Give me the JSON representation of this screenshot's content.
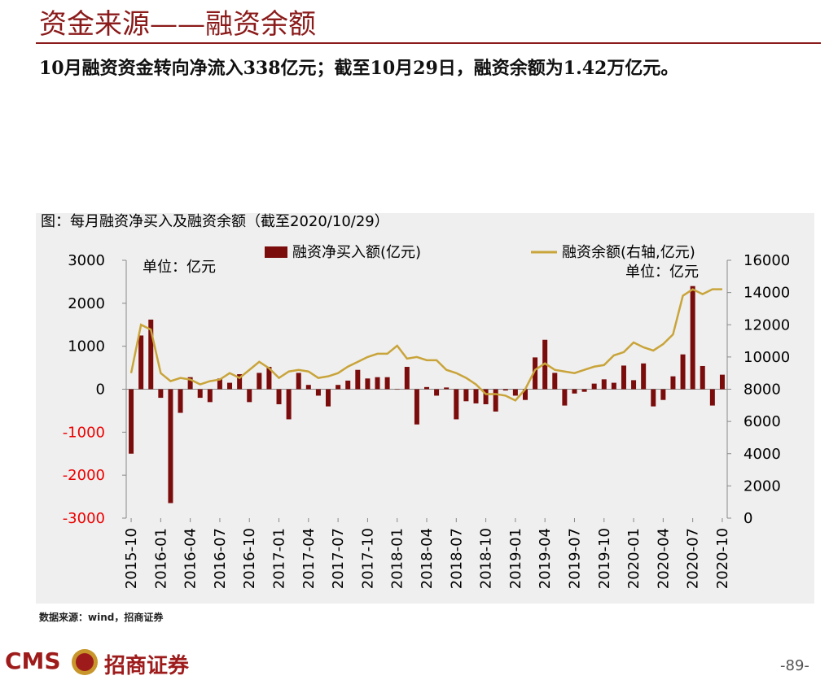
{
  "header": {
    "title": "资金来源——融资余额",
    "subtitle": "10月融资资金转向净流入338亿元；截至10月29日，融资余额为1.42万亿元。"
  },
  "chart_data": {
    "type": "bar_line",
    "title": "图：每月融资净买入及融资余额（截至2020/10/29）",
    "unit_left": "单位：亿元",
    "unit_right": "单位：亿元",
    "categories": [
      "2015-10",
      null,
      null,
      "2016-01",
      null,
      null,
      "2016-04",
      null,
      null,
      "2016-07",
      null,
      null,
      "2016-10",
      null,
      null,
      "2017-01",
      null,
      null,
      "2017-04",
      null,
      null,
      "2017-07",
      null,
      null,
      "2017-10",
      null,
      null,
      "2018-01",
      null,
      null,
      "2018-04",
      null,
      null,
      "2018-07",
      null,
      null,
      "2018-10",
      null,
      null,
      "2019-01",
      null,
      null,
      "2019-04",
      null,
      null,
      "2019-07",
      null,
      null,
      "2019-10",
      null,
      null,
      "2020-01",
      null,
      null,
      "2020-04",
      null,
      null,
      "2020-07",
      null,
      null,
      "2020-10"
    ],
    "series": [
      {
        "name": "融资净买入额(亿元)",
        "type": "bar",
        "color": "#7b0c0c",
        "values": [
          -1500,
          1250,
          1620,
          -200,
          -2650,
          -550,
          280,
          -200,
          -300,
          250,
          150,
          350,
          -300,
          380,
          520,
          -350,
          -700,
          380,
          100,
          -150,
          -400,
          100,
          200,
          450,
          250,
          280,
          280,
          -10,
          520,
          -820,
          50,
          -150,
          40,
          -700,
          -280,
          -330,
          -350,
          -520,
          -30,
          -150,
          -250,
          740,
          1150,
          380,
          -380,
          -100,
          -60,
          130,
          230,
          150,
          550,
          210,
          600,
          -400,
          -250,
          300,
          810,
          2400,
          540,
          -380,
          338
        ]
      },
      {
        "name": "融资余额(右轴,亿元)",
        "type": "line",
        "axis": "y2",
        "color": "#c9a43a",
        "values": [
          9000,
          12000,
          11700,
          9000,
          8500,
          8700,
          8600,
          8300,
          8500,
          8600,
          9000,
          8700,
          9200,
          9700,
          9300,
          8700,
          9100,
          9200,
          9100,
          8700,
          8800,
          9000,
          9400,
          9700,
          10000,
          10200,
          10200,
          10700,
          9900,
          10000,
          9800,
          9800,
          9200,
          9000,
          8700,
          8300,
          7700,
          7700,
          7600,
          7300,
          8000,
          9200,
          9600,
          9200,
          9100,
          9000,
          9200,
          9400,
          9500,
          10100,
          10300,
          10900,
          10600,
          10400,
          10800,
          11400,
          13800,
          14200,
          13900,
          14200,
          14200
        ]
      }
    ],
    "ylim": [
      -3000,
      3000
    ],
    "yticks": [
      -3000,
      -2000,
      -1000,
      0,
      1000,
      2000,
      3000
    ],
    "y2lim": [
      0,
      16000
    ],
    "y2ticks": [
      0,
      2000,
      4000,
      6000,
      8000,
      10000,
      12000,
      14000,
      16000
    ]
  },
  "footer": {
    "source": "数据来源：wind，招商证券",
    "logo": "CMS",
    "logo_cn": "招商证券",
    "page": "-89-"
  }
}
